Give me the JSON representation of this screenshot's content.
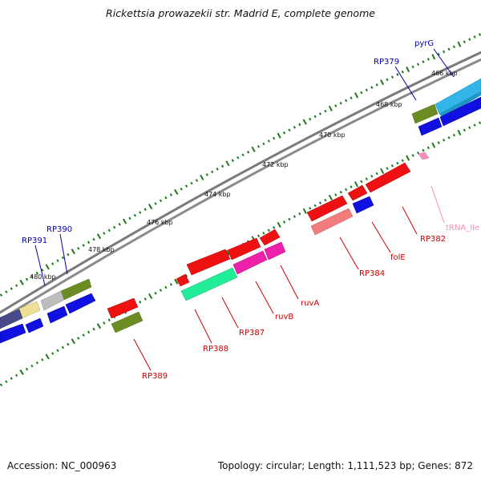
{
  "title": "Rickettsia prowazekii str. Madrid E, complete genome",
  "footer": {
    "accession": "Accession: NC_000963",
    "info": "Topology: circular; Length: 1,111,523 bp; Genes: 872"
  },
  "colors": {
    "label_blue": "#0000aa",
    "label_red": "#cc0000",
    "label_pink": "#f58fb9",
    "tick_green": "#1a7a1a",
    "backbone": "#777777"
  },
  "kbp_labels": [
    "466 kbp",
    "468 kbp",
    "470 kbp",
    "472 kbp",
    "474 kbp",
    "476 kbp",
    "478 kbp",
    "480 kbp"
  ],
  "gene_labels": {
    "pyrG": "pyrG",
    "RP379": "RP379",
    "RP390": "RP390",
    "RP391": "RP391",
    "RP382": "RP382",
    "tRNA_Ile": "tRNA_Ile",
    "folE": "folE",
    "RP384": "RP384",
    "ruvA": "ruvA",
    "ruvB": "ruvB",
    "RP387": "RP387",
    "RP388": "RP388",
    "RP389": "RP389"
  }
}
